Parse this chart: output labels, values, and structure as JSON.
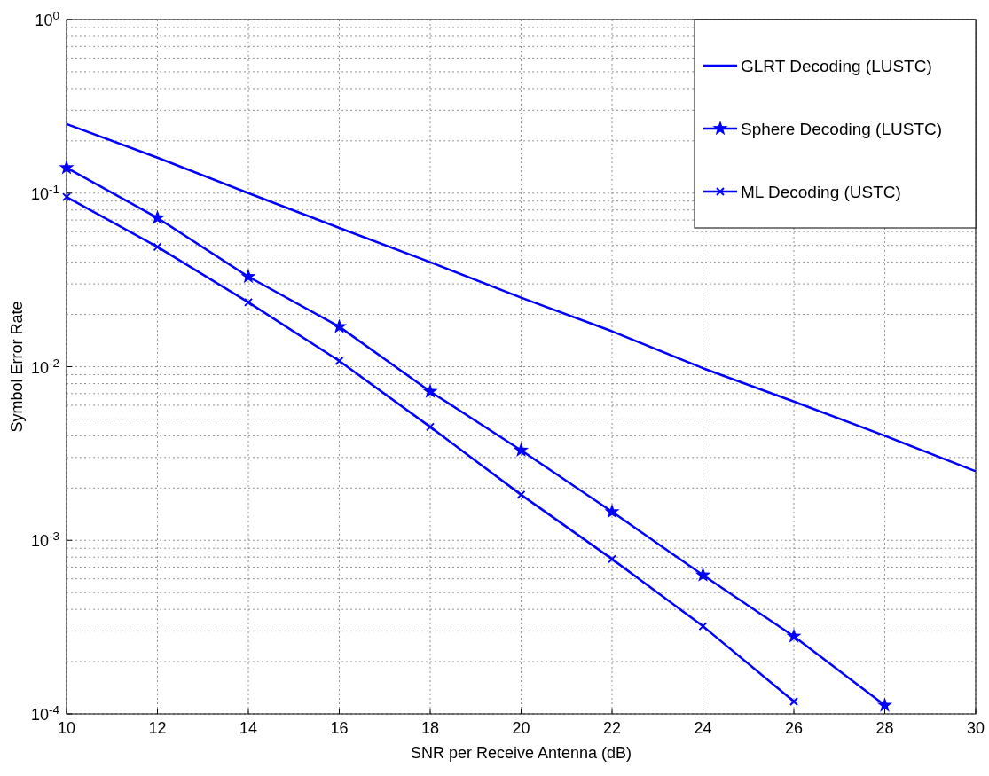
{
  "chart_data": {
    "type": "line",
    "xlabel": "SNR per Receive Antenna (dB)",
    "ylabel": "Symbol Error Rate",
    "log": "y",
    "grid": true,
    "legend": "top right",
    "line_style": "solid",
    "x": [
      10,
      12,
      14,
      16,
      18,
      20,
      22,
      24,
      26,
      28,
      30
    ],
    "xlim": [
      10,
      30
    ],
    "xticks": [
      10,
      12,
      14,
      16,
      18,
      20,
      22,
      24,
      26,
      28,
      30
    ],
    "ylim": [
      0.0001,
      1
    ],
    "yticks": [
      {
        "value": 0.0001,
        "label": "10$^{-4}$"
      },
      {
        "value": 0.001,
        "label": "10$^{-3}$"
      },
      {
        "value": 0.01,
        "label": "10$^{-2}$"
      },
      {
        "value": 0.1,
        "label": "10$^{-1}$"
      },
      {
        "value": 1,
        "label": "10$^{0}$"
      }
    ],
    "series": [
      {
        "name": "GLRT Decoding (LUSTC)",
        "color": "#0000ff",
        "marker": "none",
        "values": [
          0.25,
          0.16,
          0.1,
          0.063,
          0.04,
          0.025,
          0.016,
          0.0098,
          0.0063,
          0.004,
          0.0025
        ]
      },
      {
        "name": "Sphere Decoding (LUSTC)",
        "color": "#0000ff",
        "marker": "star",
        "values": [
          0.14,
          0.072,
          0.033,
          0.017,
          0.0072,
          0.0033,
          0.00146,
          0.00063,
          0.00028,
          0.000112,
          null
        ]
      },
      {
        "name": "ML Decoding (USTC)",
        "color": "#0000ff",
        "marker": "cross",
        "values": [
          0.095,
          0.049,
          0.0235,
          0.0108,
          0.0045,
          0.00183,
          0.00078,
          0.00032,
          0.000118,
          null,
          null
        ]
      }
    ]
  }
}
